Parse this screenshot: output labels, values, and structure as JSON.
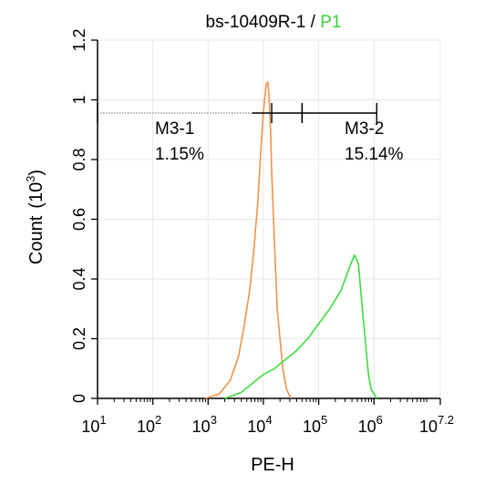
{
  "chart_data": {
    "type": "line",
    "title": {
      "main": "bs-10409R-1",
      "separator": " / ",
      "gate": "P1"
    },
    "xlabel": "PE-H",
    "ylabel": "Count",
    "ylabel_unit_base": "(10",
    "ylabel_unit_exp": "3",
    "ylabel_unit_close": ")",
    "x_scale": "log10",
    "xlim_log10": [
      1,
      7.2
    ],
    "ylim": [
      0,
      1.2
    ],
    "x_ticks": [
      {
        "pos": 1,
        "base": "10",
        "exp": "1"
      },
      {
        "pos": 2,
        "base": "10",
        "exp": "2"
      },
      {
        "pos": 3,
        "base": "10",
        "exp": "3"
      },
      {
        "pos": 4,
        "base": "10",
        "exp": "4"
      },
      {
        "pos": 5,
        "base": "10",
        "exp": "5"
      },
      {
        "pos": 6,
        "base": "10",
        "exp": "6"
      },
      {
        "pos": 7.2,
        "base": "10",
        "exp": "7.2"
      }
    ],
    "y_ticks": [
      {
        "value": 0,
        "label": "0"
      },
      {
        "value": 0.2,
        "label": "0.2"
      },
      {
        "value": 0.4,
        "label": "0.4"
      },
      {
        "value": 0.6,
        "label": "0.6"
      },
      {
        "value": 0.8,
        "label": "0.8"
      },
      {
        "value": 1,
        "label": "1"
      },
      {
        "value": 1.2,
        "label": "1.2"
      }
    ],
    "gates": [
      {
        "name": "M3-1",
        "percent": "1.15%",
        "from_log10": 1.0,
        "to_log10": 4.7
      },
      {
        "name": "M3-2",
        "percent": "15.14%",
        "from_log10": 4.7,
        "to_log10": 6.05
      }
    ],
    "series": [
      {
        "color": "#f0934a",
        "x_log10": [
          2.95,
          3.2,
          3.4,
          3.55,
          3.65,
          3.75,
          3.82,
          3.9,
          3.95,
          4.0,
          4.05,
          4.08,
          4.1,
          4.13,
          4.15,
          4.2,
          4.25,
          4.35,
          4.42,
          4.5
        ],
        "y": [
          0.0,
          0.015,
          0.06,
          0.14,
          0.24,
          0.36,
          0.48,
          0.66,
          0.82,
          0.96,
          1.05,
          1.06,
          1.02,
          0.9,
          0.76,
          0.52,
          0.3,
          0.1,
          0.03,
          0.0
        ]
      },
      {
        "color": "#3ddc3d",
        "x_log10": [
          3.3,
          3.6,
          3.8,
          4.0,
          4.2,
          4.4,
          4.6,
          4.8,
          5.0,
          5.2,
          5.4,
          5.5,
          5.6,
          5.65,
          5.72,
          5.78,
          5.85,
          5.9,
          5.95,
          6.05
        ],
        "y": [
          0.0,
          0.02,
          0.05,
          0.08,
          0.1,
          0.13,
          0.16,
          0.2,
          0.25,
          0.3,
          0.36,
          0.41,
          0.46,
          0.48,
          0.45,
          0.32,
          0.18,
          0.08,
          0.03,
          0.0
        ]
      }
    ]
  }
}
